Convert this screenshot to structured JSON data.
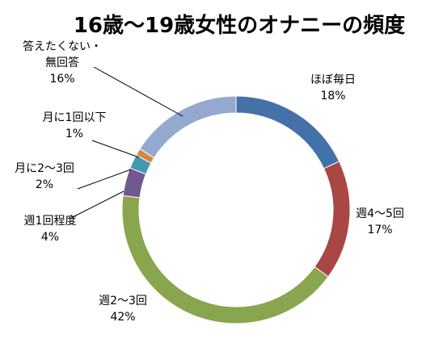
{
  "chart_data": {
    "type": "pie",
    "style": "doughnut",
    "title": "16歳～19歳女性のオナニーの頻度",
    "start_angle_deg": 0,
    "direction": "clockwise",
    "slices": [
      {
        "label_lines": [
          "ほぼ毎日"
        ],
        "percent_text": "18%",
        "value": 18,
        "color": "#4472A8"
      },
      {
        "label_lines": [
          "週4～5回"
        ],
        "percent_text": "17%",
        "value": 17,
        "color": "#AA4643"
      },
      {
        "label_lines": [
          "週2～3回"
        ],
        "percent_text": "42%",
        "value": 42,
        "color": "#89A54E"
      },
      {
        "label_lines": [
          "週1回程度"
        ],
        "percent_text": "4%",
        "value": 4,
        "color": "#71588F"
      },
      {
        "label_lines": [
          "月に2～3回"
        ],
        "percent_text": "2%",
        "value": 2,
        "color": "#4198AF"
      },
      {
        "label_lines": [
          "月に1回以下"
        ],
        "percent_text": "1%",
        "value": 1,
        "color": "#DB843D"
      },
      {
        "label_lines": [
          "答えたくない・",
          "無回答"
        ],
        "percent_text": "16%",
        "value": 16,
        "color": "#93A9CF"
      }
    ]
  }
}
